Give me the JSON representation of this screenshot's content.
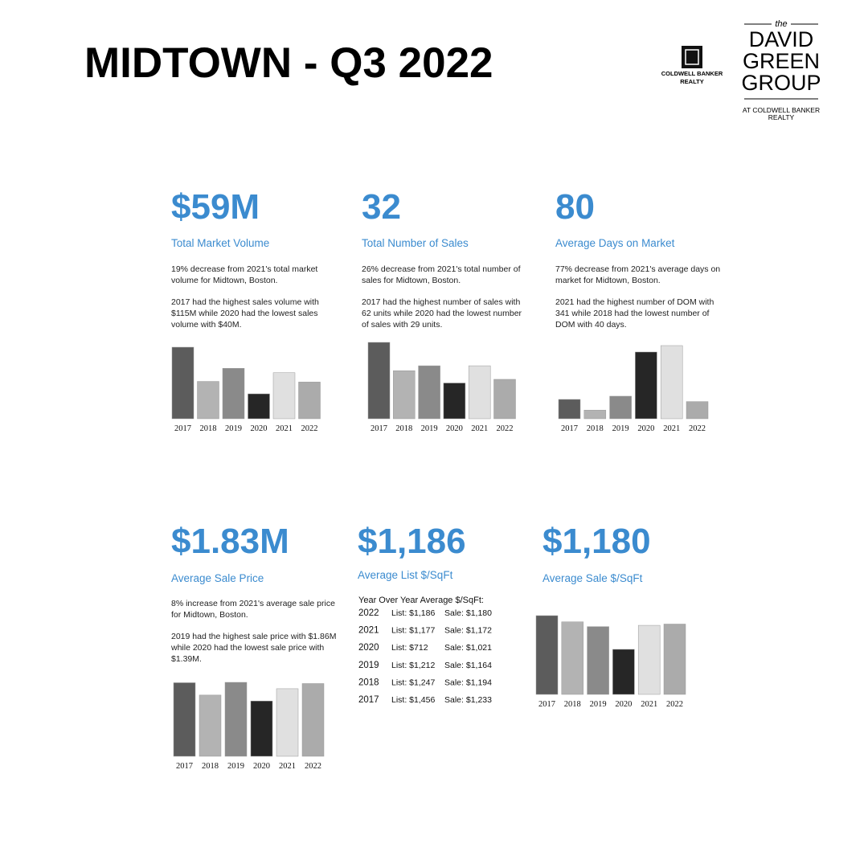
{
  "header": {
    "title": "MIDTOWN - Q3 2022"
  },
  "logos": {
    "coldwell_banker": [
      "COLDWELL BANKER",
      "REALTY"
    ],
    "david_green": [
      "the",
      "DAVID",
      "GREEN",
      "GROUP",
      "AT COLDWELL BANKER",
      "REALTY"
    ]
  },
  "stats": [
    {
      "value": "$59M",
      "label": "Total Market Volume",
      "paragraphs": [
        [
          "19% decrease from 2021's total market",
          "volume for Midtown, Boston."
        ],
        [
          "2017 had the highest sales volume with",
          "$115M while 2020 had the lowest sales",
          "volume with $40M."
        ]
      ]
    },
    {
      "value": "32",
      "label": "Total Number of Sales",
      "paragraphs": [
        [
          "26% decrease from 2021's total number of",
          "sales for Midtown, Boston."
        ],
        [
          "2017 had the highest number of sales with",
          "62 units while 2020 had the lowest number",
          "of sales with 29 units."
        ]
      ]
    },
    {
      "value": "80",
      "label": "Average Days on Market",
      "paragraphs": [
        [
          "77% decrease from 2021's average days on",
          "market for Midtown, Boston."
        ],
        [
          "2021 had the highest number of DOM with",
          "341 while 2018 had the lowest number of",
          "DOM with 40 days."
        ]
      ]
    },
    {
      "value": "$1.83M",
      "label": "Average Sale Price",
      "paragraphs": [
        [
          "8% increase from 2021's average sale price",
          "for Midtown, Boston."
        ],
        [
          "2019 had the highest sale price with $1.86M",
          "while 2020 had the lowest sale price with",
          "$1.39M."
        ]
      ]
    },
    {
      "value": "$1,186",
      "label": "Average List $/SqFt",
      "paragraphs": []
    },
    {
      "value": "$1,180",
      "label": "Average Sale $/SqFt",
      "paragraphs": []
    }
  ],
  "table": {
    "title": "Year Over Year Average $/SqFt:",
    "rows": [
      [
        "2022",
        "List: $1,186",
        "Sale: $1,180"
      ],
      [
        "2021",
        "List: $1,177",
        "Sale: $1,172"
      ],
      [
        "2020",
        "List: $712",
        "Sale: $1,021"
      ],
      [
        "2019",
        "List: $1,212",
        "Sale: $1,164"
      ],
      [
        "2018",
        "List: $1,247",
        "Sale: $1,194"
      ],
      [
        "2017",
        "List: $1,456",
        "Sale: $1,233"
      ]
    ]
  },
  "chart_data": [
    {
      "type": "bar",
      "categories": [
        "2017",
        "2018",
        "2019",
        "2020",
        "2021",
        "2022"
      ],
      "values": [
        115,
        60,
        81,
        40,
        74,
        59
      ],
      "ylim": [
        0,
        115
      ],
      "colors": [
        "#5c5c5c",
        "#b3b3b3",
        "#8a8a8a",
        "#262626",
        "#e0e0e0",
        "#ababab"
      ]
    },
    {
      "type": "bar",
      "categories": [
        "2017",
        "2018",
        "2019",
        "2020",
        "2021",
        "2022"
      ],
      "values": [
        62,
        39,
        43,
        29,
        43,
        32
      ],
      "ylim": [
        0,
        62
      ],
      "colors": [
        "#5c5c5c",
        "#b3b3b3",
        "#8a8a8a",
        "#262626",
        "#e0e0e0",
        "#ababab"
      ]
    },
    {
      "type": "bar",
      "categories": [
        "2017",
        "2018",
        "2019",
        "2020",
        "2021",
        "2022"
      ],
      "values": [
        90,
        40,
        105,
        311,
        341,
        80
      ],
      "ylim": [
        0,
        341
      ],
      "colors": [
        "#5c5c5c",
        "#b3b3b3",
        "#8a8a8a",
        "#262626",
        "#e0e0e0",
        "#ababab"
      ]
    },
    {
      "type": "bar",
      "categories": [
        "2017",
        "2018",
        "2019",
        "2020",
        "2021",
        "2022"
      ],
      "values": [
        1.85,
        1.54,
        1.86,
        1.39,
        1.7,
        1.83
      ],
      "ylim": [
        0,
        1.86
      ],
      "colors": [
        "#5c5c5c",
        "#b3b3b3",
        "#8a8a8a",
        "#262626",
        "#e0e0e0",
        "#ababab"
      ]
    },
    {
      "type": "bar",
      "categories": [
        "2017",
        "2018",
        "2019",
        "2020",
        "2021",
        "2022"
      ],
      "values": [
        1233,
        1194,
        1164,
        1021,
        1172,
        1180
      ],
      "ylim": [
        738,
        1233
      ],
      "colors": [
        "#5c5c5c",
        "#b3b3b3",
        "#8a8a8a",
        "#262626",
        "#e0e0e0",
        "#ababab"
      ]
    }
  ]
}
